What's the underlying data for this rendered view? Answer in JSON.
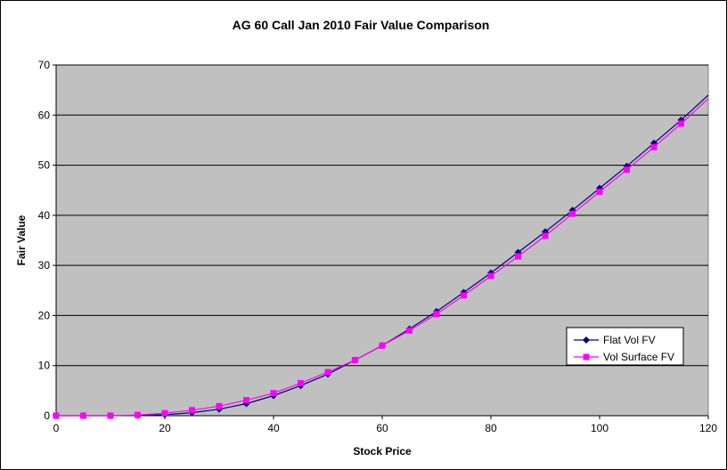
{
  "chart_data": {
    "type": "line",
    "title": "AG 60 Call Jan 2010 Fair Value Comparison",
    "xlabel": "Stock Price",
    "ylabel": "Fair Value",
    "xlim": [
      0,
      120
    ],
    "ylim": [
      0,
      70
    ],
    "x_ticks": [
      "0",
      "20",
      "40",
      "60",
      "80",
      "100",
      "120"
    ],
    "y_ticks": [
      "0",
      "10",
      "20",
      "30",
      "40",
      "50",
      "60",
      "70"
    ],
    "grid": "horizontal",
    "legend_position": "bottom-right",
    "plot_background": "#c0c0c0",
    "x": [
      0,
      5,
      10,
      15,
      20,
      25,
      30,
      35,
      40,
      45,
      50,
      55,
      60,
      65,
      70,
      75,
      80,
      85,
      90,
      95,
      100,
      105,
      110,
      115,
      120
    ],
    "series": [
      {
        "name": "Flat Vol FV",
        "color": "#000080",
        "marker": "diamond",
        "values": [
          0,
          0,
          0,
          0.05,
          0.2,
          0.6,
          1.3,
          2.4,
          4.0,
          6.0,
          8.3,
          11.1,
          14.0,
          17.3,
          20.8,
          24.6,
          28.5,
          32.6,
          36.7,
          41.0,
          45.4,
          49.8,
          54.4,
          59.0,
          64.0
        ]
      },
      {
        "name": "Vol Surface FV",
        "color": "#ff00ff",
        "marker": "square",
        "values": [
          0,
          0,
          0,
          0.15,
          0.5,
          1.1,
          1.9,
          3.1,
          4.5,
          6.5,
          8.7,
          11.1,
          14.0,
          17.0,
          20.3,
          24.0,
          27.9,
          31.8,
          35.9,
          40.3,
          44.7,
          49.1,
          53.6,
          58.3,
          63.3
        ]
      }
    ]
  }
}
